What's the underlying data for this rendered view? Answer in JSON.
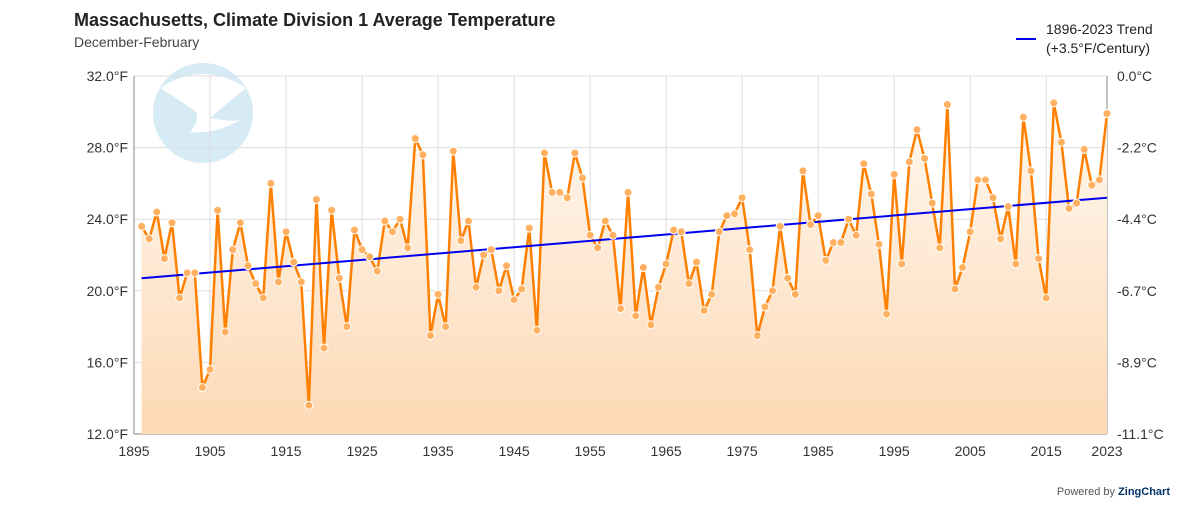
{
  "chart_data": {
    "type": "line",
    "title": "Massachusetts, Climate Division 1 Average Temperature",
    "subtitle": "December-February",
    "x_range": [
      1895,
      2023
    ],
    "y_range": [
      12,
      32
    ],
    "x_ticks": [
      "1895",
      "1905",
      "1915",
      "1925",
      "1935",
      "1945",
      "1955",
      "1965",
      "1975",
      "1985",
      "1995",
      "2005",
      "2015",
      "2023"
    ],
    "y_ticks_left": [
      "32.0°F",
      "28.0°F",
      "24.0°F",
      "20.0°F",
      "16.0°F",
      "12.0°F"
    ],
    "y_ticks_right": [
      "0.0°C",
      "-2.2°C",
      "-4.4°C",
      "-6.7°C",
      "-8.9°C",
      "-11.1°C"
    ],
    "grid": true,
    "legend_position": "top-right",
    "colors": {
      "series": "#ff8000",
      "trend": "#0000ee",
      "fill": "#fdd9b5"
    },
    "series": [
      {
        "x_start": 1896,
        "values": [
          23.6,
          22.9,
          24.4,
          21.8,
          23.8,
          19.6,
          21.0,
          21.0,
          14.6,
          15.6,
          24.5,
          17.7,
          22.3,
          23.8,
          21.4,
          20.4,
          19.6,
          26.0,
          20.5,
          23.3,
          21.6,
          20.5,
          13.6,
          25.1,
          16.8,
          24.5,
          20.7,
          18.0,
          23.4,
          22.3,
          21.9,
          21.1,
          23.9,
          23.3,
          24.0,
          22.4,
          28.5,
          27.6,
          17.5,
          19.8,
          18.0,
          27.8,
          22.8,
          23.9,
          20.2,
          22.0,
          22.3,
          20.0,
          21.4,
          19.5,
          20.1,
          23.5,
          17.8,
          27.7,
          25.5,
          25.5,
          25.2,
          27.7,
          26.3,
          23.1,
          22.4,
          23.9,
          23.1,
          19.0,
          25.5,
          18.6,
          21.3,
          18.1,
          20.2,
          21.5,
          23.4,
          23.3,
          20.4,
          21.6,
          18.9,
          19.8,
          23.3,
          24.2,
          24.3,
          25.2,
          22.3,
          17.5,
          19.1,
          20.0,
          23.6,
          20.7,
          19.8,
          26.7,
          23.7,
          24.2,
          21.7,
          22.7,
          22.7,
          24.0,
          23.1,
          27.1,
          25.4,
          22.6,
          18.7,
          26.5,
          21.5,
          27.2,
          29.0,
          27.4,
          24.9,
          22.4,
          30.4,
          20.1,
          21.3,
          23.3,
          26.2,
          26.2,
          25.2,
          22.9,
          24.7,
          21.5,
          29.7,
          26.7,
          21.8,
          19.6,
          30.5,
          28.3,
          24.6,
          24.9,
          27.9,
          25.9,
          26.2,
          29.9
        ]
      }
    ],
    "trend": {
      "name": "1896-2023 Trend",
      "label": "(+3.5°F/Century)",
      "x": [
        1896,
        2023
      ],
      "y": [
        20.7,
        25.2
      ]
    }
  },
  "branding": {
    "powered_by": "Powered by",
    "brand": "ZingChart",
    "logo_text": "NOAA"
  }
}
